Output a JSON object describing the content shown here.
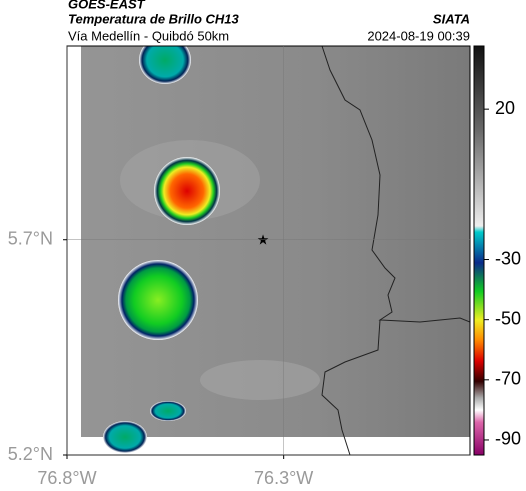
{
  "header": {
    "satellite": "GOES-EAST",
    "product": "Temperatura de Brillo CH13",
    "route": "Vía Medellín - Quibdó 50km",
    "source": "SIATA",
    "timestamp": "2024-08-19 00:39"
  },
  "map": {
    "xlim": [
      -76.8,
      -75.87
    ],
    "ylim": [
      5.2,
      6.15
    ],
    "xticks": [
      {
        "value": -76.8,
        "label": "76.8°W"
      },
      {
        "value": -76.3,
        "label": "76.3°W"
      }
    ],
    "yticks": [
      {
        "value": 5.2,
        "label": "5.2°N"
      },
      {
        "value": 5.7,
        "label": "5.7°N"
      }
    ],
    "grid": true
  },
  "colorbar": {
    "lim": [
      -95,
      41
    ],
    "ticks": [
      20,
      -30,
      -50,
      -70,
      -90
    ]
  }
}
